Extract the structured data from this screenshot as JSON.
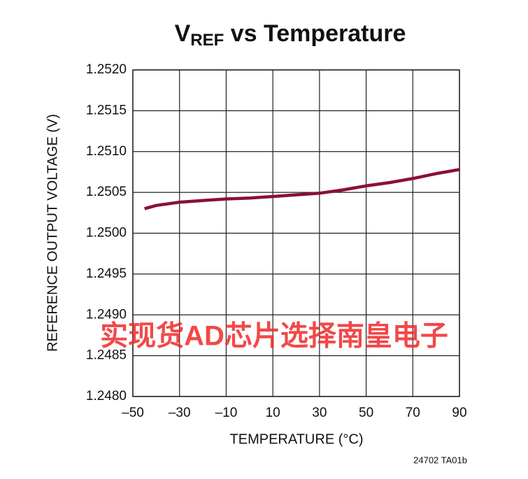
{
  "chart_data": {
    "type": "line",
    "title": "V",
    "title_subscript": "REF",
    "title_rest": " vs Temperature",
    "x_label": "TEMPERATURE (°C)",
    "y_label": "REFERENCE OUTPUT VOLTAGE (V)",
    "footnote": "24702 TA01b",
    "watermark": "实现货AD芯片选择南皇电子",
    "x": [
      -45,
      -40,
      -30,
      -20,
      -10,
      0,
      10,
      20,
      30,
      40,
      50,
      60,
      70,
      80,
      90
    ],
    "series": [
      {
        "name": "VREF",
        "color": "#8c0f36",
        "values": [
          1.2503,
          1.25034,
          1.25038,
          1.2504,
          1.25042,
          1.25043,
          1.25045,
          1.25047,
          1.25049,
          1.25053,
          1.25058,
          1.25062,
          1.25067,
          1.25073,
          1.25078
        ]
      }
    ],
    "xlim": [
      -50,
      90
    ],
    "xticks": [
      {
        "value": -50,
        "label": "–50"
      },
      {
        "value": -30,
        "label": "–30"
      },
      {
        "value": -10,
        "label": "–10"
      },
      10,
      30,
      50,
      70,
      90
    ],
    "ylim": [
      1.248,
      1.252
    ],
    "yticks": [
      {
        "value": 1.248,
        "label": "1.2480"
      },
      {
        "value": 1.2485,
        "label": "1.2485"
      },
      {
        "value": 1.249,
        "label": "1.2490"
      },
      {
        "value": 1.2495,
        "label": "1.2495"
      },
      {
        "value": 1.25,
        "label": "1.2500"
      },
      {
        "value": 1.2505,
        "label": "1.2505"
      },
      {
        "value": 1.251,
        "label": "1.2510"
      },
      {
        "value": 1.2515,
        "label": "1.2515"
      },
      {
        "value": 1.252,
        "label": "1.2520"
      }
    ],
    "grid": true
  }
}
